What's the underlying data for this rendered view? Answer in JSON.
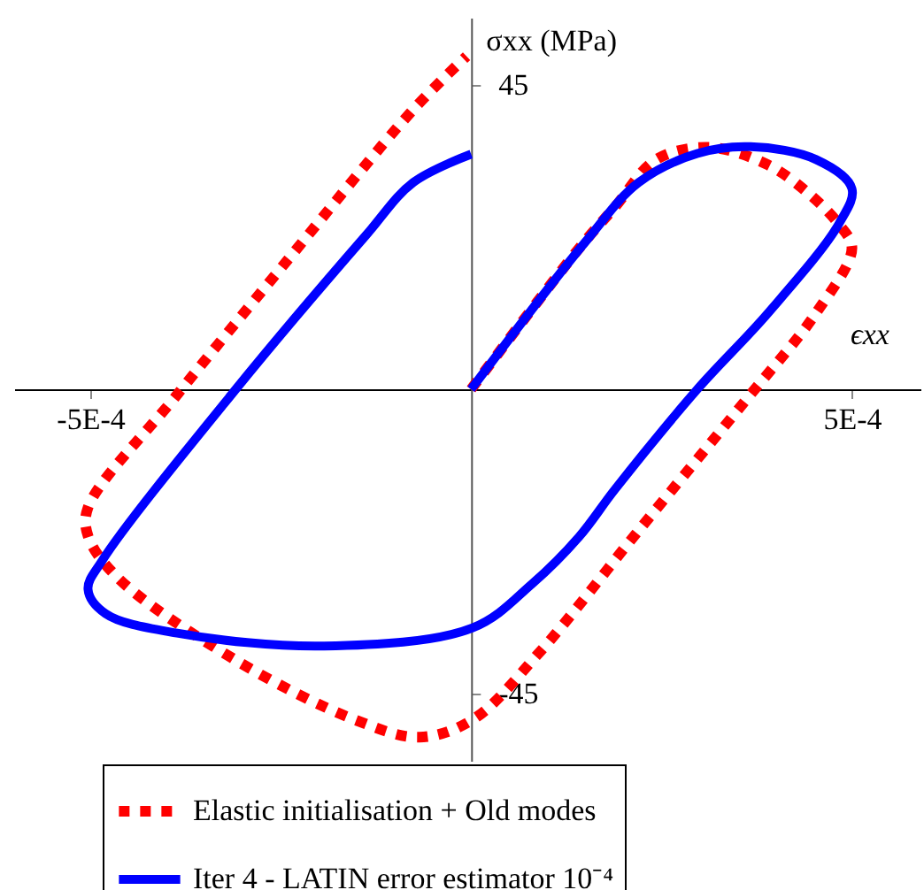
{
  "chart_data": {
    "type": "line",
    "xlabel": "ϵxx",
    "ylabel": "σxx (MPa)",
    "xlim": [
      -0.0006,
      0.00059
    ],
    "ylim": [
      -55,
      55
    ],
    "xticks": [
      {
        "value": -0.0005,
        "label": "-5E-4"
      },
      {
        "value": 0.0005,
        "label": "5E-4"
      }
    ],
    "yticks": [
      -45,
      45
    ],
    "grid": false,
    "legend": "bottom",
    "series": [
      {
        "name": "Elastic initialisation + Old modes",
        "color": "#ff0000",
        "line_style": "dotted",
        "x": [
          0,
          0.000142,
          0.000189,
          0.000243,
          0.000313,
          0.00039,
          0.000445,
          0.000483,
          0.0005,
          0.000453,
          0.00036,
          0.00022,
          8.7e-05,
          2e-06,
          -6.8e-05,
          -0.000153,
          -0.000309,
          -0.000464,
          -0.000503,
          -0.000503,
          -0.000386,
          -0.000247,
          -7.6e-05,
          -6e-06
        ],
        "values": [
          0,
          20.9,
          27.0,
          34.0,
          35.8,
          33.2,
          28.8,
          24.4,
          20.9,
          11.3,
          -1.7,
          -20.9,
          -39.3,
          -48.9,
          -51.5,
          -48.9,
          -40.1,
          -27.9,
          -21.7,
          -17.5,
          -0.8,
          18.3,
          41.4,
          49.3
        ]
      },
      {
        "name": "Iter 4 - LATIN error estimator 10⁻⁴",
        "color": "#0000ff",
        "line_style": "solid",
        "x": [
          0,
          0.00015,
          0.00022,
          0.000297,
          0.000367,
          0.000453,
          0.0005,
          0.000483,
          0.00039,
          0.000297,
          0.000189,
          0.000142,
          8e-05,
          2e-06,
          -0.000193,
          -0.000386,
          -0.00048,
          -0.000503,
          -0.000484,
          -0.000309,
          -0.000138,
          -7.6e-05,
          0
        ],
        "values": [
          0,
          21.8,
          30.6,
          34.9,
          35.9,
          34.0,
          29.7,
          24.5,
          11.3,
          0,
          -14.8,
          -21.8,
          -28.8,
          -35.3,
          -38.0,
          -36.1,
          -33.2,
          -29.6,
          -25.3,
          0,
          22.8,
          30.6,
          34.8
        ]
      }
    ]
  }
}
